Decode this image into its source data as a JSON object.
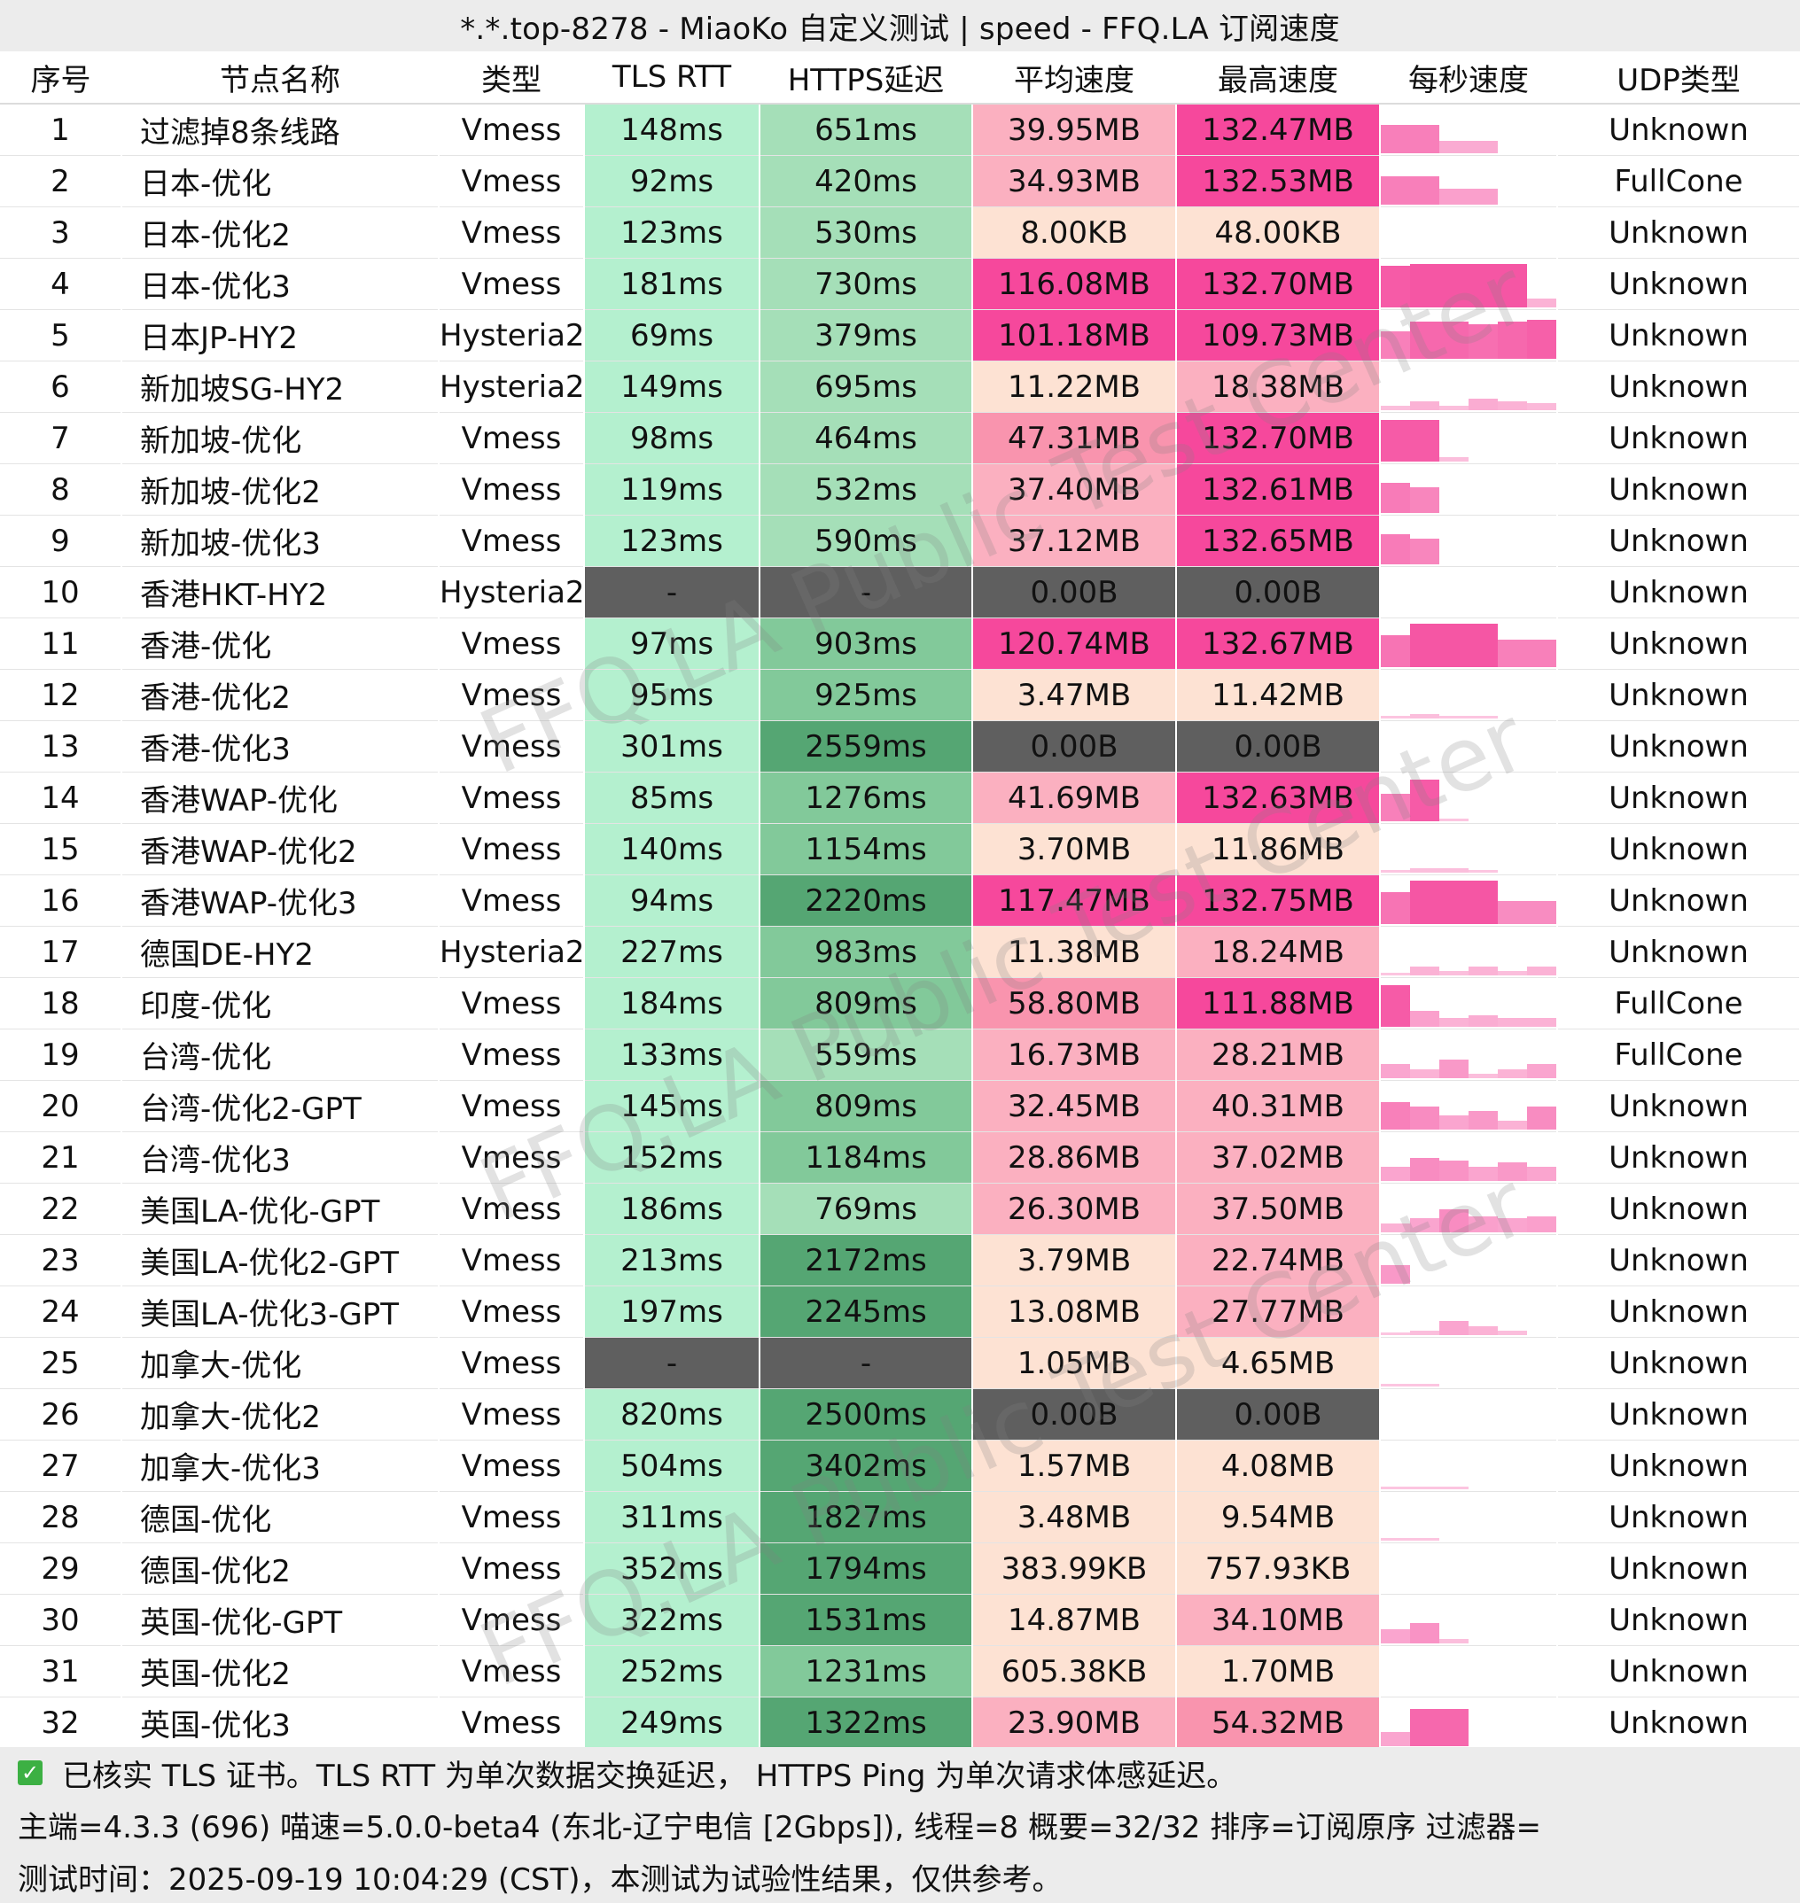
{
  "title": "*.*.top-8278 - MiaoKo 自定义测试 | speed - FFQ.LA 订阅速度",
  "columns": [
    "序号",
    "节点名称",
    "类型",
    "TLS RTT",
    "HTTPS延迟",
    "平均速度",
    "最高速度",
    "每秒速度",
    "UDP类型"
  ],
  "rows": [
    {
      "idx": "1",
      "name": "过滤掉8条线路",
      "type": "Vmess",
      "tls": "148ms",
      "https": "651ms",
      "avg": "39.95MB",
      "max": "132.47MB",
      "udp": "Unknown",
      "spark": [
        0.62,
        0.62,
        0.26,
        0.26,
        0,
        0
      ]
    },
    {
      "idx": "2",
      "name": "日本-优化",
      "type": "Vmess",
      "tls": "92ms",
      "https": "420ms",
      "avg": "34.93MB",
      "max": "132.53MB",
      "udp": "FullCone",
      "spark": [
        0.62,
        0.62,
        0.34,
        0.34,
        0,
        0
      ]
    },
    {
      "idx": "3",
      "name": "日本-优化2",
      "type": "Vmess",
      "tls": "123ms",
      "https": "530ms",
      "avg": "8.00KB",
      "max": "48.00KB",
      "udp": "Unknown",
      "spark": [
        0,
        0,
        0,
        0,
        0,
        0
      ]
    },
    {
      "idx": "4",
      "name": "日本-优化3",
      "type": "Vmess",
      "tls": "181ms",
      "https": "730ms",
      "avg": "116.08MB",
      "max": "132.70MB",
      "udp": "Unknown",
      "spark": [
        0.9,
        0.95,
        0.95,
        0.95,
        0.95,
        0.2
      ]
    },
    {
      "idx": "5",
      "name": "日本JP-HY2",
      "type": "Hysteria2",
      "tls": "69ms",
      "https": "379ms",
      "avg": "101.18MB",
      "max": "109.73MB",
      "udp": "Unknown",
      "spark": [
        0.6,
        0.8,
        0.8,
        0.75,
        0.8,
        0.85
      ]
    },
    {
      "idx": "6",
      "name": "新加坡SG-HY2",
      "type": "Hysteria2",
      "tls": "149ms",
      "https": "695ms",
      "avg": "11.22MB",
      "max": "18.38MB",
      "udp": "Unknown",
      "spark": [
        0.1,
        0.2,
        0.1,
        0.25,
        0.2,
        0.15
      ]
    },
    {
      "idx": "7",
      "name": "新加坡-优化",
      "type": "Vmess",
      "tls": "98ms",
      "https": "464ms",
      "avg": "47.31MB",
      "max": "132.70MB",
      "udp": "Unknown",
      "spark": [
        0.9,
        0.9,
        0.1,
        0,
        0,
        0
      ]
    },
    {
      "idx": "8",
      "name": "新加坡-优化2",
      "type": "Vmess",
      "tls": "119ms",
      "https": "532ms",
      "avg": "37.40MB",
      "max": "132.61MB",
      "udp": "Unknown",
      "spark": [
        0.65,
        0.55,
        0,
        0,
        0,
        0
      ]
    },
    {
      "idx": "9",
      "name": "新加坡-优化3",
      "type": "Vmess",
      "tls": "123ms",
      "https": "590ms",
      "avg": "37.12MB",
      "max": "132.65MB",
      "udp": "Unknown",
      "spark": [
        0.65,
        0.55,
        0,
        0,
        0,
        0
      ]
    },
    {
      "idx": "10",
      "name": "香港HKT-HY2",
      "type": "Hysteria2",
      "tls": "-",
      "https": "-",
      "avg": "0.00B",
      "max": "0.00B",
      "udp": "Unknown",
      "spark": [
        0,
        0,
        0,
        0,
        0,
        0
      ]
    },
    {
      "idx": "11",
      "name": "香港-优化",
      "type": "Vmess",
      "tls": "97ms",
      "https": "903ms",
      "avg": "120.74MB",
      "max": "132.67MB",
      "udp": "Unknown",
      "spark": [
        0.7,
        0.95,
        0.95,
        0.95,
        0.6,
        0.6
      ]
    },
    {
      "idx": "12",
      "name": "香港-优化2",
      "type": "Vmess",
      "tls": "95ms",
      "https": "925ms",
      "avg": "3.47MB",
      "max": "11.42MB",
      "udp": "Unknown",
      "spark": [
        0.05,
        0.1,
        0.05,
        0.05,
        0,
        0
      ]
    },
    {
      "idx": "13",
      "name": "香港-优化3",
      "type": "Vmess",
      "tls": "301ms",
      "https": "2559ms",
      "avg": "0.00B",
      "max": "0.00B",
      "udp": "Unknown",
      "spark": [
        0,
        0,
        0,
        0,
        0,
        0
      ]
    },
    {
      "idx": "14",
      "name": "香港WAP-优化",
      "type": "Vmess",
      "tls": "85ms",
      "https": "1276ms",
      "avg": "41.69MB",
      "max": "132.63MB",
      "udp": "Unknown",
      "spark": [
        0.6,
        0.9,
        0.05,
        0,
        0,
        0
      ]
    },
    {
      "idx": "15",
      "name": "香港WAP-优化2",
      "type": "Vmess",
      "tls": "140ms",
      "https": "1154ms",
      "avg": "3.70MB",
      "max": "11.86MB",
      "udp": "Unknown",
      "spark": [
        0.05,
        0.1,
        0.1,
        0.05,
        0,
        0
      ]
    },
    {
      "idx": "16",
      "name": "香港WAP-优化3",
      "type": "Vmess",
      "tls": "94ms",
      "https": "2220ms",
      "avg": "117.47MB",
      "max": "132.75MB",
      "udp": "Unknown",
      "spark": [
        0.7,
        0.95,
        0.95,
        0.95,
        0.5,
        0.5
      ]
    },
    {
      "idx": "17",
      "name": "德国DE-HY2",
      "type": "Hysteria2",
      "tls": "227ms",
      "https": "983ms",
      "avg": "11.38MB",
      "max": "18.24MB",
      "udp": "Unknown",
      "spark": [
        0.05,
        0.2,
        0.1,
        0.2,
        0.1,
        0.2
      ]
    },
    {
      "idx": "18",
      "name": "印度-优化",
      "type": "Vmess",
      "tls": "184ms",
      "https": "809ms",
      "avg": "58.80MB",
      "max": "111.88MB",
      "udp": "FullCone",
      "spark": [
        0.9,
        0.35,
        0.2,
        0.25,
        0.2,
        0.2
      ]
    },
    {
      "idx": "19",
      "name": "台湾-优化",
      "type": "Vmess",
      "tls": "133ms",
      "https": "559ms",
      "avg": "16.73MB",
      "max": "28.21MB",
      "udp": "FullCone",
      "spark": [
        0.3,
        0.2,
        0.4,
        0.1,
        0.2,
        0.3
      ]
    },
    {
      "idx": "20",
      "name": "台湾-优化2-GPT",
      "type": "Vmess",
      "tls": "145ms",
      "https": "809ms",
      "avg": "32.45MB",
      "max": "40.31MB",
      "udp": "Unknown",
      "spark": [
        0.6,
        0.5,
        0.3,
        0.4,
        0.2,
        0.5
      ]
    },
    {
      "idx": "21",
      "name": "台湾-优化3",
      "type": "Vmess",
      "tls": "152ms",
      "https": "1184ms",
      "avg": "28.86MB",
      "max": "37.02MB",
      "udp": "Unknown",
      "spark": [
        0.3,
        0.5,
        0.45,
        0.3,
        0.4,
        0.3
      ]
    },
    {
      "idx": "22",
      "name": "美国LA-优化-GPT",
      "type": "Vmess",
      "tls": "186ms",
      "https": "769ms",
      "avg": "26.30MB",
      "max": "37.50MB",
      "udp": "Unknown",
      "spark": [
        0.2,
        0.3,
        0.5,
        0.35,
        0.3,
        0.35
      ]
    },
    {
      "idx": "23",
      "name": "美国LA-优化2-GPT",
      "type": "Vmess",
      "tls": "213ms",
      "https": "2172ms",
      "avg": "3.79MB",
      "max": "22.74MB",
      "udp": "Unknown",
      "spark": [
        0.4,
        0,
        0,
        0,
        0,
        0
      ]
    },
    {
      "idx": "24",
      "name": "美国LA-优化3-GPT",
      "type": "Vmess",
      "tls": "197ms",
      "https": "2245ms",
      "avg": "13.08MB",
      "max": "27.77MB",
      "udp": "Unknown",
      "spark": [
        0.05,
        0.1,
        0.3,
        0.2,
        0.1,
        0
      ]
    },
    {
      "idx": "25",
      "name": "加拿大-优化",
      "type": "Vmess",
      "tls": "-",
      "https": "-",
      "avg": "1.05MB",
      "max": "4.65MB",
      "udp": "Unknown",
      "spark": [
        0.05,
        0.05,
        0,
        0,
        0,
        0
      ]
    },
    {
      "idx": "26",
      "name": "加拿大-优化2",
      "type": "Vmess",
      "tls": "820ms",
      "https": "2500ms",
      "avg": "0.00B",
      "max": "0.00B",
      "udp": "Unknown",
      "spark": [
        0,
        0,
        0,
        0,
        0,
        0
      ]
    },
    {
      "idx": "27",
      "name": "加拿大-优化3",
      "type": "Vmess",
      "tls": "504ms",
      "https": "3402ms",
      "avg": "1.57MB",
      "max": "4.08MB",
      "udp": "Unknown",
      "spark": [
        0.05,
        0.05,
        0.05,
        0,
        0,
        0
      ]
    },
    {
      "idx": "28",
      "name": "德国-优化",
      "type": "Vmess",
      "tls": "311ms",
      "https": "1827ms",
      "avg": "3.48MB",
      "max": "9.54MB",
      "udp": "Unknown",
      "spark": [
        0.05,
        0.05,
        0,
        0,
        0,
        0
      ]
    },
    {
      "idx": "29",
      "name": "德国-优化2",
      "type": "Vmess",
      "tls": "352ms",
      "https": "1794ms",
      "avg": "383.99KB",
      "max": "757.93KB",
      "udp": "Unknown",
      "spark": [
        0,
        0,
        0,
        0,
        0,
        0
      ]
    },
    {
      "idx": "30",
      "name": "英国-优化-GPT",
      "type": "Vmess",
      "tls": "322ms",
      "https": "1531ms",
      "avg": "14.87MB",
      "max": "34.10MB",
      "udp": "Unknown",
      "spark": [
        0.3,
        0.45,
        0.1,
        0,
        0,
        0
      ]
    },
    {
      "idx": "31",
      "name": "英国-优化2",
      "type": "Vmess",
      "tls": "252ms",
      "https": "1231ms",
      "avg": "605.38KB",
      "max": "1.70MB",
      "udp": "Unknown",
      "spark": [
        0,
        0,
        0,
        0,
        0,
        0
      ]
    },
    {
      "idx": "32",
      "name": "英国-优化3",
      "type": "Vmess",
      "tls": "249ms",
      "https": "1322ms",
      "avg": "23.90MB",
      "max": "54.32MB",
      "udp": "Unknown",
      "spark": [
        0.3,
        0.8,
        0.8,
        0,
        0,
        0
      ]
    }
  ],
  "footer": {
    "line1": "已核实 TLS 证书。TLS RTT 为单次数据交换延迟， HTTPS Ping 为单次请求体感延迟。",
    "line2": "主端=4.3.3 (696) 喵速=5.0.0-beta4 (东北-辽宁电信 [2Gbps]), 线程=8 概要=32/32 排序=订阅原序 过滤器=",
    "line3": "测试时间：2025-09-19 10:04:29 (CST)，本测试为试验性结果，仅供参考。"
  },
  "watermark": "FFQ.LA Public Test Center",
  "colors": {
    "tls_bg": "#b4f0cf",
    "https_light": "#a5dfb8",
    "https_mid": "#82c99a",
    "https_dark": "#55a673",
    "speed_low": "#fde2d3",
    "speed_mid": "#fbb0c0",
    "speed_mid2": "#f994ae",
    "speed_high": "#f6489c",
    "failed_bg": "#5f5f5f",
    "spark_color": "#f54fa0"
  }
}
